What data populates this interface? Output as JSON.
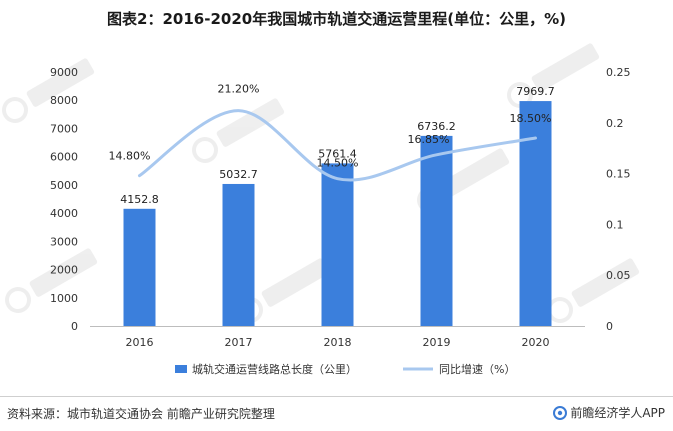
{
  "page": {
    "title": "图表2：2016-2020年我国城市轨道交通运营里程(单位：公里，%)",
    "source": "资料来源：城市轨道交通协会 前瞻产业研究院整理",
    "brand": "前瞻经济学人APP"
  },
  "chart_data": {
    "type": "bar",
    "categories": [
      "2016",
      "2017",
      "2018",
      "2019",
      "2020"
    ],
    "series": [
      {
        "name": "城轨交通运营线路总长度（公里）",
        "type": "bar",
        "axis": "left",
        "values": [
          4152.8,
          5032.7,
          5761.4,
          6736.2,
          7969.7
        ],
        "labels": [
          "4152.8",
          "5032.7",
          "5761.4",
          "6736.2",
          "7969.7"
        ]
      },
      {
        "name": "同比增速（%）",
        "type": "line",
        "axis": "right",
        "values": [
          0.148,
          0.212,
          0.145,
          0.1685,
          0.185
        ],
        "labels": [
          "14.80%",
          "21.20%",
          "14.50%",
          "16.85%",
          "18.50%"
        ]
      }
    ],
    "y_left": {
      "min": 0,
      "max": 9000,
      "ticks": [
        "0",
        "1000",
        "2000",
        "3000",
        "4000",
        "5000",
        "6000",
        "7000",
        "8000",
        "9000"
      ]
    },
    "y_right": {
      "min": 0,
      "max": 0.25,
      "ticks": [
        "0",
        "0.05",
        "0.1",
        "0.15",
        "0.2",
        "0.25"
      ]
    },
    "colors": {
      "bar": "#3b7fdc",
      "line": "#a8c8ef"
    },
    "legend_position": "bottom"
  }
}
